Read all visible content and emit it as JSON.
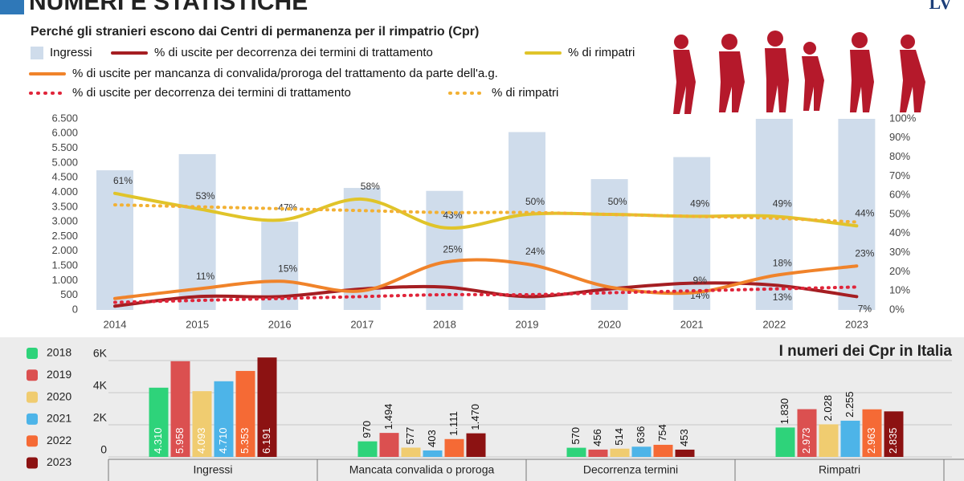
{
  "header": {
    "title": "NUMERI E STATISTICHE",
    "logo": "LV"
  },
  "chart_data": [
    {
      "type": "combo",
      "title": "Perché gli stranieri escono dai Centri di permanenza per il rimpatrio (Cpr)",
      "categories": [
        "2014",
        "2015",
        "2016",
        "2017",
        "2018",
        "2019",
        "2020",
        "2021",
        "2022",
        "2023"
      ],
      "series": [
        {
          "name": "Ingressi",
          "type": "bar",
          "color": "#cfdceb",
          "values": [
            4750,
            5300,
            3000,
            4150,
            4050,
            6050,
            4450,
            5200,
            6500,
            6500
          ]
        },
        {
          "name": "% di uscite per decorrenza dei termini di trattamento",
          "type": "line",
          "axis": "y2",
          "color": "#a51e22",
          "values": [
            2,
            7,
            7,
            11,
            12,
            7,
            11,
            14,
            13,
            7
          ],
          "value_labels": [
            null,
            null,
            null,
            null,
            null,
            null,
            null,
            "14%",
            "13%",
            "7%"
          ]
        },
        {
          "name": "% di rimpatri",
          "type": "line",
          "axis": "y2",
          "color": "#e0c42a",
          "values": [
            61,
            53,
            47,
            58,
            43,
            50,
            50,
            49,
            49,
            44
          ],
          "value_labels": [
            "61%",
            "53%",
            "47%",
            "58%",
            "43%",
            "50%",
            "50%",
            "49%",
            "49%",
            "44%"
          ]
        },
        {
          "name": "% di uscite per mancanza di convalida/proroga del trattamento da parte dell'a.g.",
          "type": "line",
          "axis": "y2",
          "color": "#f0832a",
          "values": [
            6,
            11,
            15,
            10,
            25,
            24,
            12,
            9,
            18,
            23
          ],
          "value_labels": [
            null,
            "11%",
            "15%",
            null,
            "25%",
            "24%",
            null,
            "9%",
            "18%",
            "23%"
          ]
        },
        {
          "name": "% di uscite per decorrenza dei termini di trattamento",
          "type": "line",
          "dash": "dotted",
          "axis": "y2",
          "color": "#e0253a",
          "values": [
            4,
            5,
            6,
            7,
            8,
            8,
            9,
            10,
            11,
            12
          ]
        },
        {
          "name": "% di rimpatri",
          "type": "line",
          "dash": "dotted",
          "axis": "y2",
          "color": "#f2b134",
          "values": [
            55,
            54,
            53,
            52,
            51,
            51,
            50,
            49,
            48,
            46
          ]
        }
      ],
      "ylim": [
        0,
        6500
      ],
      "yticks": [
        0,
        500,
        {
          "value": 1000,
          "label": "1.000"
        },
        {
          "value": 1500,
          "label": "1.500"
        },
        {
          "value": 2000,
          "label": "2.000"
        },
        {
          "value": 2500,
          "label": "2.500"
        },
        {
          "value": 3000,
          "label": "3.000"
        },
        {
          "value": 3500,
          "label": "3.500"
        },
        {
          "value": 4000,
          "label": "4.000"
        },
        {
          "value": 4500,
          "label": "4.500"
        },
        {
          "value": 5000,
          "label": "5.000"
        },
        {
          "value": 5500,
          "label": "5.500"
        },
        {
          "value": 6000,
          "label": "6.000"
        },
        {
          "value": 6500,
          "label": "6.500"
        }
      ],
      "y2lim": [
        0,
        100
      ],
      "y2ticks": [
        {
          "value": 0,
          "label": "0%"
        },
        {
          "value": 10,
          "label": "10%"
        },
        {
          "value": 20,
          "label": "20%"
        },
        {
          "value": 30,
          "label": "30%"
        },
        {
          "value": 40,
          "label": "40%"
        },
        {
          "value": 50,
          "label": "50%"
        },
        {
          "value": 60,
          "label": "60%"
        },
        {
          "value": 70,
          "label": "70%"
        },
        {
          "value": 80,
          "label": "80%"
        },
        {
          "value": 90,
          "label": "90%"
        },
        {
          "value": 100,
          "label": "100%"
        }
      ]
    },
    {
      "type": "bar",
      "title": "I numeri dei Cpr in Italia",
      "categories": [
        "Ingressi",
        "Mancata convalida o proroga",
        "Decorrenza termini",
        "Rimpatri"
      ],
      "series": [
        {
          "name": "2018",
          "color": "#2ed37a",
          "values": [
            4310,
            970,
            570,
            1830
          ],
          "value_labels": [
            "4.310",
            "970",
            "570",
            "1.830"
          ]
        },
        {
          "name": "2019",
          "color": "#db5050",
          "values": [
            5958,
            1494,
            456,
            2973
          ],
          "value_labels": [
            "5.958",
            "1.494",
            "456",
            "2.973"
          ]
        },
        {
          "name": "2020",
          "color": "#f0cc70",
          "values": [
            4093,
            577,
            514,
            2028
          ],
          "value_labels": [
            "4.093",
            "577",
            "514",
            "2.028"
          ]
        },
        {
          "name": "2021",
          "color": "#4db4e8",
          "values": [
            4710,
            403,
            636,
            2255
          ],
          "value_labels": [
            "4.710",
            "403",
            "636",
            "2.255"
          ]
        },
        {
          "name": "2022",
          "color": "#f56a35",
          "values": [
            5353,
            1111,
            754,
            2963
          ],
          "value_labels": [
            "5.353",
            "1.111",
            "754",
            "2.963"
          ]
        },
        {
          "name": "2023",
          "color": "#8c1212",
          "values": [
            6191,
            1470,
            453,
            2835
          ],
          "value_labels": [
            "6.191",
            "1.470",
            "453",
            "2.835"
          ]
        }
      ],
      "ylim": [
        0,
        6500
      ],
      "yticks": [
        0,
        {
          "value": 2000,
          "label": "2K"
        },
        {
          "value": 4000,
          "label": "4K"
        },
        {
          "value": 6000,
          "label": "6K"
        }
      ]
    }
  ]
}
